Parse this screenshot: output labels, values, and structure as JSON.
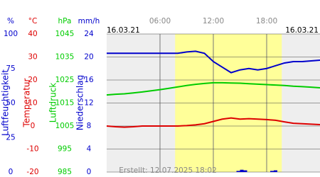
{
  "chart_data": {
    "type": "line",
    "date_left": "16.03.21",
    "date_right": "16.03.21",
    "footer": "Erstellt: 12.07.2025 18:02",
    "xlim": [
      0,
      24
    ],
    "xticks": [
      {
        "value": 6,
        "label": "06:00"
      },
      {
        "value": 12,
        "label": "12:00"
      },
      {
        "value": 18,
        "label": "18:00"
      }
    ],
    "daylight": [
      7.7,
      19.7
    ],
    "grid": true,
    "axes": [
      {
        "unit": "%",
        "label": "Luftfeuchtigkeit",
        "color": "#0000cc",
        "type": "line",
        "lim": [
          0,
          100
        ],
        "ticks": [
          100,
          75,
          50,
          25,
          0
        ],
        "x": [
          0,
          1,
          2,
          3,
          4,
          5,
          6,
          7,
          8,
          9,
          10,
          11,
          12,
          13,
          14,
          15,
          16,
          17,
          18,
          19,
          20,
          21,
          22,
          23,
          24
        ],
        "values": [
          86,
          86,
          86,
          86,
          86,
          86,
          86,
          86,
          86,
          87,
          87.5,
          86,
          80,
          76,
          72,
          74,
          75,
          74,
          75,
          77,
          79,
          80,
          80,
          80.5,
          81
        ]
      },
      {
        "unit": "°C",
        "label": "Temperatur",
        "color": "#dd0000",
        "type": "line",
        "lim": [
          -20,
          40
        ],
        "ticks": [
          40,
          30,
          20,
          10,
          0,
          -10,
          -20
        ],
        "x": [
          0,
          1,
          2,
          3,
          4,
          5,
          6,
          7,
          8,
          9,
          10,
          11,
          12,
          13,
          14,
          15,
          16,
          17,
          18,
          19,
          20,
          21,
          22,
          23,
          24
        ],
        "values": [
          0,
          -0.3,
          -0.5,
          -0.3,
          0,
          0,
          0,
          0,
          0,
          0.2,
          0.5,
          1,
          2,
          3,
          3.5,
          3,
          3.2,
          3,
          2.8,
          2.5,
          1.8,
          1.2,
          1,
          0.8,
          0.6
        ]
      },
      {
        "unit": "hPa",
        "label": "Luftdruck",
        "color": "#00cc00",
        "type": "line",
        "lim": [
          985,
          1045
        ],
        "ticks": [
          1045,
          1035,
          1025,
          1015,
          1005,
          995,
          985
        ],
        "x": [
          0,
          1,
          2,
          3,
          4,
          5,
          6,
          7,
          8,
          9,
          10,
          11,
          12,
          13,
          14,
          15,
          16,
          17,
          18,
          19,
          20,
          21,
          22,
          23,
          24
        ],
        "values": [
          1018.5,
          1018.8,
          1019,
          1019.4,
          1019.8,
          1020.3,
          1020.8,
          1021.4,
          1022,
          1022.6,
          1023.1,
          1023.5,
          1023.8,
          1023.8,
          1023.7,
          1023.6,
          1023.4,
          1023.2,
          1023,
          1022.8,
          1022.6,
          1022.3,
          1022.1,
          1021.9,
          1021.6
        ]
      },
      {
        "unit": "mm/h",
        "label": "Niederschlag",
        "color": "#0000cc",
        "type": "bar",
        "lim": [
          0,
          24
        ],
        "ticks": [
          24,
          20,
          16,
          12,
          8,
          4,
          0
        ],
        "x": [
          14.8,
          15.2,
          15.6,
          18.6,
          19
        ],
        "values": [
          0.2,
          0.4,
          0.3,
          0.2,
          0.3
        ]
      }
    ]
  }
}
